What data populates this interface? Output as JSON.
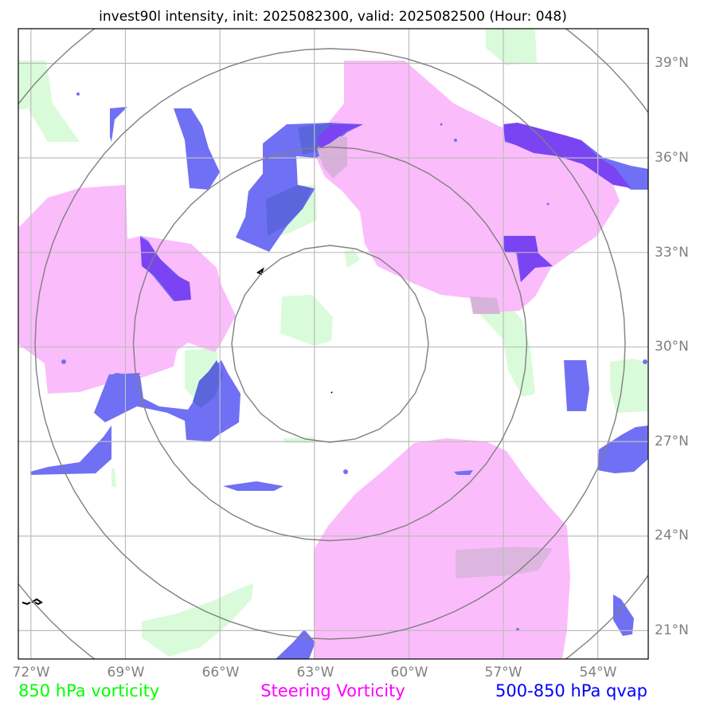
{
  "title": "invest90l intensity, init: 2025082300, valid: 2025082500 (Hour: 048)",
  "map": {
    "lon_labels": [
      "72°W",
      "69°W",
      "66°W",
      "63°W",
      "60°W",
      "57°W",
      "54°W"
    ],
    "lat_labels": [
      "39°N",
      "36°N",
      "33°N",
      "30°N",
      "27°N",
      "24°N",
      "21°N"
    ],
    "lon_values": [
      -72,
      -69,
      -66,
      -63,
      -60,
      -57,
      -54
    ],
    "lat_values": [
      39,
      36,
      33,
      30,
      27,
      24,
      21
    ],
    "lon_range": [
      -72.4,
      -52.4
    ],
    "lat_range": [
      20.1,
      40.1
    ],
    "storm_center": {
      "lon": -62.5,
      "lat": 30.1
    },
    "range_rings_count": 4
  },
  "legend": {
    "vorticity_850": {
      "label": "850 hPa vorticity",
      "color": "#00ff00"
    },
    "steering_vorticity": {
      "label": "Steering Vorticity",
      "color": "#ff00ff"
    },
    "qvap": {
      "label": "500-850 hPa qvap",
      "color": "#0000ff"
    }
  },
  "colors": {
    "vorticity_850_fill": "#d9fbd9",
    "steering_fill": "#fbbcfb",
    "qvap_fill": "#7070f4",
    "overlap_fill": "#5b66dd",
    "strong_qvap_fill": "#7a44f2",
    "grid": "#bdbdbd",
    "rings": "#808080",
    "frame": "#000000"
  }
}
